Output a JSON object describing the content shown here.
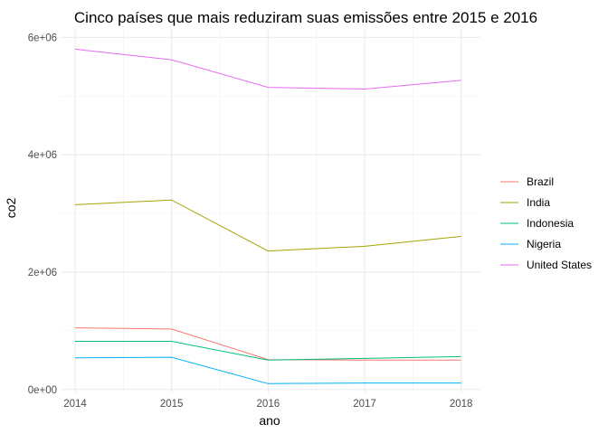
{
  "chart_data": {
    "type": "line",
    "title": "Cinco países que mais reduziram suas emissões entre 2015 e 2016",
    "xlabel": "ano",
    "ylabel": "co2",
    "x": [
      2014,
      2015,
      2016,
      2017,
      2018
    ],
    "x_tick_labels": [
      "2014",
      "2015",
      "2016",
      "2017",
      "2018"
    ],
    "y_ticks": [
      0,
      2000000,
      4000000,
      6000000
    ],
    "y_tick_labels": [
      "0e+00",
      "2e+06",
      "4e+06",
      "6e+06"
    ],
    "ylim": [
      -50000,
      6130000
    ],
    "xlim": [
      2013.85,
      2018.2
    ],
    "grid": true,
    "legend_position": "right",
    "series": [
      {
        "name": "Brazil",
        "color": "#F8766D",
        "values": [
          1050000,
          1030000,
          510000,
          500000,
          500000
        ]
      },
      {
        "name": "India",
        "color": "#A3A500",
        "values": [
          3150000,
          3230000,
          2360000,
          2440000,
          2610000
        ]
      },
      {
        "name": "Indonesia",
        "color": "#00BF7D",
        "values": [
          820000,
          820000,
          500000,
          530000,
          560000
        ]
      },
      {
        "name": "Nigeria",
        "color": "#00B0F6",
        "values": [
          540000,
          550000,
          100000,
          110000,
          110000
        ]
      },
      {
        "name": "United States",
        "color": "#E76BF3",
        "values": [
          5800000,
          5620000,
          5150000,
          5120000,
          5270000
        ]
      }
    ]
  }
}
